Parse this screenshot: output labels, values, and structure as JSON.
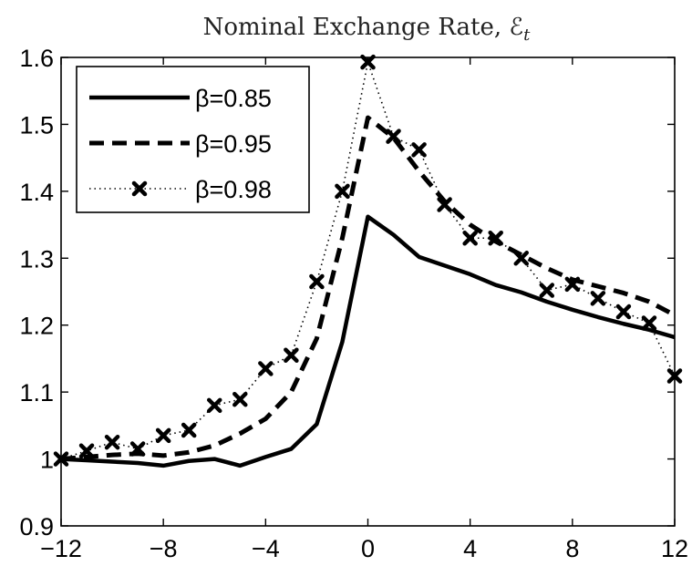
{
  "chart_data": {
    "type": "line",
    "title": "Nominal Exchange Rate, ℰ",
    "title_subscript": "t",
    "xlabel": "",
    "ylabel": "",
    "xlim": [
      -12,
      12
    ],
    "ylim": [
      0.9,
      1.6
    ],
    "xticks": [
      -12,
      -8,
      -4,
      0,
      4,
      8,
      12
    ],
    "yticks": [
      0.9,
      1.0,
      1.1,
      1.2,
      1.3,
      1.4,
      1.5,
      1.6
    ],
    "xtick_labels": [
      "−12",
      "−8",
      "−4",
      "0",
      "4",
      "8",
      "12"
    ],
    "ytick_labels": [
      "0.9",
      "1",
      "1.1",
      "1.2",
      "1.3",
      "1.4",
      "1.5",
      "1.6"
    ],
    "grid": false,
    "legend_position": "top-left",
    "x": [
      -12,
      -11,
      -10,
      -9,
      -8,
      -7,
      -6,
      -5,
      -4,
      -3,
      -2,
      -1,
      0,
      1,
      2,
      3,
      4,
      5,
      6,
      7,
      8,
      9,
      10,
      11,
      12
    ],
    "series": [
      {
        "name": "β=0.85",
        "style": "solid",
        "color": "#000000",
        "values": [
          1.0,
          0.998,
          0.996,
          0.994,
          0.99,
          0.997,
          1.0,
          0.99,
          1.003,
          1.015,
          1.052,
          1.175,
          1.362,
          1.335,
          1.302,
          1.289,
          1.276,
          1.26,
          1.249,
          1.235,
          1.223,
          1.212,
          1.202,
          1.193,
          1.182
        ]
      },
      {
        "name": "β=0.95",
        "style": "dashed",
        "color": "#000000",
        "values": [
          1.0,
          1.003,
          1.006,
          1.008,
          1.005,
          1.01,
          1.02,
          1.038,
          1.06,
          1.1,
          1.18,
          1.33,
          1.51,
          1.48,
          1.43,
          1.385,
          1.35,
          1.325,
          1.305,
          1.285,
          1.268,
          1.258,
          1.248,
          1.235,
          1.215
        ]
      },
      {
        "name": "β=0.98",
        "style": "dotted-x",
        "color": "#000000",
        "values": [
          1.0,
          1.012,
          1.025,
          1.015,
          1.035,
          1.043,
          1.08,
          1.089,
          1.135,
          1.155,
          1.265,
          1.4,
          1.593,
          1.482,
          1.462,
          1.38,
          1.33,
          1.33,
          1.3,
          1.252,
          1.261,
          1.24,
          1.22,
          1.203,
          1.124
        ]
      }
    ]
  }
}
